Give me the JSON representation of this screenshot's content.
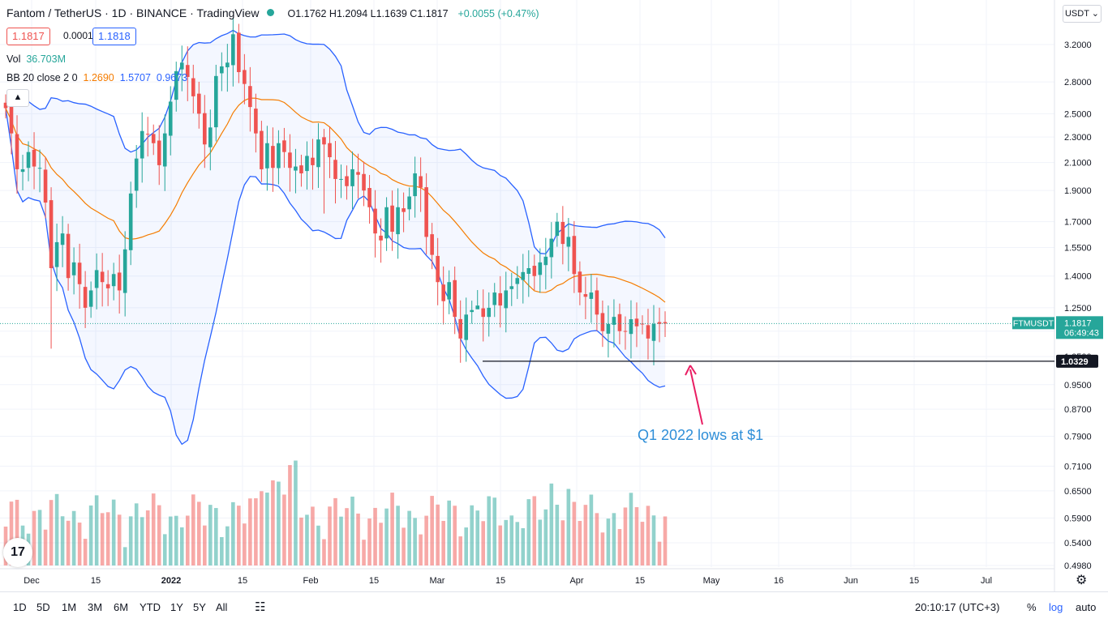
{
  "header": {
    "symbol": "Fantom / TetherUS · 1D · BINANCE · TradingView",
    "ohlc_text": "O1.1762 H1.2094 L1.1639 C1.1817",
    "change_text": "+0.0055 (+0.47%)",
    "sell_price": "1.1817",
    "spread": "0.0001",
    "buy_price": "1.1818",
    "currency_button": "USDT",
    "up_color": "#26a69a",
    "down_color": "#ef5350"
  },
  "indicators": {
    "vol_label": "Vol",
    "vol_value": "36.703M",
    "bb_label": "BB 20 close 2 0",
    "bb_basis": "1.2690",
    "bb_upper": "1.5707",
    "bb_lower": "0.9673",
    "basis_color": "#f57c00",
    "band_color": "#2962ff"
  },
  "labels": {
    "ticker_tag": "FTMUSDT",
    "ticker_price": "1.1817",
    "countdown": "06:49:43",
    "hline_price": "1.0329",
    "annotation": "Q1 2022 lows at $1",
    "annotation_color": "#e91e63",
    "annotation_text_color": "#2e8ed8"
  },
  "bottombar": {
    "intervals": [
      "1D",
      "5D",
      "1M",
      "3M",
      "6M",
      "YTD",
      "1Y",
      "5Y",
      "All"
    ],
    "time": "20:10:17 (UTC+3)",
    "percent": "%",
    "log": "log",
    "auto": "auto"
  },
  "chart_data": {
    "type": "candlestick",
    "title": "Fantom / TetherUS · 1D · BINANCE",
    "y_scale": "log",
    "ylim": [
      0.47,
      3.45
    ],
    "y_ticks": [
      "3.2000",
      "2.8000",
      "2.5000",
      "2.3000",
      "2.1000",
      "1.9000",
      "1.7000",
      "1.5500",
      "1.4000",
      "1.2500",
      "1.1500",
      "1.0500",
      "0.9500",
      "0.8700",
      "0.7900",
      "0.7100",
      "0.6500",
      "0.5900",
      "0.5400",
      "0.4980"
    ],
    "x_ticks": [
      "Dec",
      "15",
      "2022",
      "15",
      "Feb",
      "15",
      "Mar",
      "15",
      "Apr",
      "15",
      "May",
      "16",
      "Jun",
      "15",
      "Jul"
    ],
    "hline": 1.0329,
    "last_close": 1.1817,
    "candles_note": "daily OHLC approximated from chart, Dec 1 2021 - Apr 24 2022",
    "closes": [
      2.55,
      2.33,
      2.05,
      2.05,
      2.18,
      2.07,
      2.06,
      1.82,
      1.44,
      1.58,
      1.63,
      1.39,
      1.47,
      1.36,
      1.25,
      1.33,
      1.43,
      1.37,
      1.34,
      1.41,
      1.33,
      1.54,
      1.88,
      2.13,
      2.35,
      2.32,
      2.25,
      2.08,
      2.33,
      2.61,
      2.91,
      3.0,
      2.85,
      2.66,
      2.5,
      2.24,
      2.38,
      2.86,
      2.96,
      3.0,
      3.32,
      2.9,
      2.78,
      2.56,
      2.33,
      2.05,
      2.25,
      2.06,
      2.25,
      2.18,
      2.06,
      2.07,
      2.02,
      2.15,
      2.08,
      2.28,
      2.24,
      2.14,
      1.98,
      1.98,
      1.93,
      2.05,
      2.01,
      1.9,
      1.79,
      1.63,
      1.59,
      1.79,
      1.64,
      1.79,
      1.76,
      1.86,
      2.02,
      1.92,
      1.61,
      1.51,
      1.37,
      1.28,
      1.37,
      1.21,
      1.12,
      1.22,
      1.24,
      1.26,
      1.21,
      1.25,
      1.32,
      1.26,
      1.33,
      1.35,
      1.39,
      1.42,
      1.44,
      1.4,
      1.47,
      1.5,
      1.6,
      1.7,
      1.57,
      1.61,
      1.41,
      1.32,
      1.3,
      1.32,
      1.22,
      1.15,
      1.18,
      1.21,
      1.15,
      1.15,
      1.2,
      1.17,
      1.18,
      1.12,
      1.18,
      1.18,
      1.1817
    ],
    "volume_scale_note": "volume bars relative heights 0-1"
  }
}
